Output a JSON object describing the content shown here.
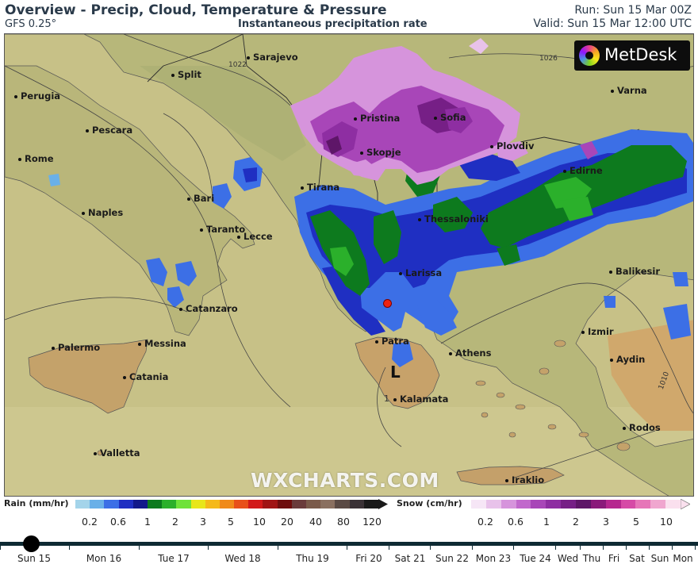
{
  "header": {
    "title": "Overview - Precip, Cloud, Temperature & Pressure",
    "model": "GFS 0.25°",
    "parameter": "Instantaneous precipitation rate",
    "run": "Run: Sun 15 Mar 00Z",
    "valid": "Valid: Sun 15 Mar 12:00 UTC"
  },
  "branding": {
    "logo_text": "MetDesk",
    "watermark": "WXCHARTS.COM"
  },
  "map": {
    "cities": [
      "Sarajevo",
      "Split",
      "Perugia",
      "Pescara",
      "Rome",
      "Bari",
      "Naples",
      "Taranto",
      "Lecce",
      "Catanzaro",
      "Palermo",
      "Messina",
      "Catania",
      "Valletta",
      "Pristina",
      "Sofia",
      "Skopje",
      "Plovdiv",
      "Varna",
      "Edirne",
      "Tirana",
      "Thessaloniki",
      "Larissa",
      "Patra",
      "Athens",
      "Kalamata",
      "Balikesir",
      "Izmir",
      "Aydin",
      "Rodos",
      "Iraklio"
    ],
    "pressure_low": "L",
    "isobar_labels": [
      "1022",
      "1026",
      "1010",
      "1"
    ]
  },
  "legends": {
    "rain": {
      "label": "Rain (mm/hr)",
      "colors": [
        "#a4d4ea",
        "#6ab0e8",
        "#3c6fe6",
        "#1f2fc2",
        "#12188a",
        "#0d7a1e",
        "#2bb02b",
        "#6fe23a",
        "#e8e61a",
        "#f5b91a",
        "#f08a1a",
        "#e8501a",
        "#d21a1a",
        "#a01414",
        "#6e0e0e",
        "#6a3b3b",
        "#7a5a4a",
        "#8a7060",
        "#5a4a44",
        "#3a3236",
        "#1a1a1a"
      ],
      "ticks": [
        "0.2",
        "0.6",
        "1",
        "2",
        "3",
        "5",
        "10",
        "20",
        "40",
        "80",
        "120"
      ]
    },
    "snow": {
      "label": "Snow (cm/hr)",
      "colors": [
        "#f6e6f6",
        "#e8c2ea",
        "#d694dc",
        "#c168cc",
        "#a846b8",
        "#8e2ea2",
        "#761f86",
        "#5e1668",
        "#8a1a7a",
        "#b6288f",
        "#d64aa6",
        "#e676b8",
        "#f0a6cf",
        "#fae0ee"
      ],
      "ticks": [
        "0.2",
        "0.6",
        "1",
        "2",
        "3",
        "5",
        "10"
      ]
    }
  },
  "timeline": {
    "days": [
      "Sun 15",
      "Mon 16",
      "Tue 17",
      "Wed 18",
      "Thu 19",
      "Fri 20",
      "Sat 21",
      "Sun 22",
      "Mon 23",
      "Tue 24",
      "Wed",
      "Thu",
      "Fri",
      "Sat",
      "Sun",
      "Mon"
    ],
    "current_index": 0
  }
}
